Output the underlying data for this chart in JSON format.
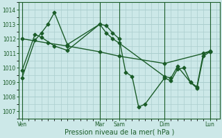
{
  "title": "",
  "xlabel": "Pression niveau de la mer( hPa )",
  "background_color": "#cce8e8",
  "grid_color": "#aacece",
  "line_color": "#1a5c28",
  "ylim": [
    1006.5,
    1014.5
  ],
  "yticks": [
    1007,
    1008,
    1009,
    1010,
    1011,
    1012,
    1013,
    1014
  ],
  "xtick_labels": [
    "Ven",
    "Mar",
    "Sam",
    "Dim",
    "Lun"
  ],
  "xtick_positions": [
    0,
    12,
    15,
    22,
    29
  ],
  "xlim": [
    -0.5,
    30.5
  ],
  "line1_x": [
    0,
    2,
    3,
    4,
    5,
    7,
    12,
    13,
    14,
    15,
    16,
    17,
    18,
    19,
    22,
    23,
    24,
    25,
    26,
    27,
    28,
    29
  ],
  "line1_y": [
    1009.3,
    1011.9,
    1012.4,
    1013.0,
    1013.8,
    1011.6,
    1013.0,
    1012.9,
    1012.4,
    1012.0,
    1009.7,
    1009.4,
    1007.3,
    1007.5,
    1009.3,
    1009.1,
    1009.9,
    1010.0,
    1009.0,
    1008.6,
    1010.8,
    1011.1
  ],
  "line2_x": [
    0,
    2,
    3,
    5,
    7,
    12,
    13,
    14,
    15,
    22,
    23,
    24,
    26,
    27,
    28,
    29
  ],
  "line2_y": [
    1009.8,
    1012.3,
    1012.1,
    1011.5,
    1011.2,
    1013.0,
    1012.4,
    1012.0,
    1011.7,
    1009.4,
    1009.3,
    1010.1,
    1009.0,
    1008.7,
    1011.0,
    1011.15
  ],
  "line3_x": [
    0,
    4,
    7,
    12,
    15,
    22,
    29
  ],
  "line3_y": [
    1012.0,
    1011.7,
    1011.5,
    1011.1,
    1010.8,
    1010.3,
    1011.1
  ],
  "marker": "D",
  "marker_size": 2.5,
  "linewidth": 1.0
}
